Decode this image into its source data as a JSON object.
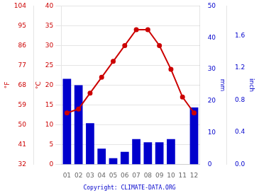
{
  "chart_data": {
    "type": "bar",
    "categories": [
      "01",
      "02",
      "03",
      "04",
      "05",
      "06",
      "07",
      "08",
      "09",
      "10",
      "11",
      "12"
    ],
    "series": [
      {
        "type": "bar",
        "color": "#0000cc",
        "axis": "y2",
        "values": [
          27,
          25,
          13,
          5,
          2,
          4,
          8,
          7,
          7,
          8,
          0,
          18
        ]
      },
      {
        "type": "line",
        "color": "#cc0000",
        "marker": "circle",
        "values": [
          13,
          14,
          18,
          22,
          26,
          30,
          34,
          34,
          30,
          24,
          17,
          13
        ]
      }
    ],
    "ylabel": "°C",
    "ylim": [
      0,
      40
    ],
    "yticks": [
      0,
      5,
      10,
      15,
      20,
      25,
      30,
      35,
      40
    ],
    "y2label": "mm",
    "y2lim": [
      0,
      50
    ],
    "y2ticks": [
      0,
      10,
      20,
      30,
      40,
      50
    ],
    "y3label": "°F",
    "y3lim": [
      32,
      104
    ],
    "y3ticks": [
      32,
      41,
      50,
      59,
      68,
      77,
      86,
      95,
      104
    ],
    "y4label": "inch",
    "y4lim": [
      0,
      1.968503937007874
    ],
    "y4ticks": [
      {
        "value": 0,
        "label": "0.0"
      },
      {
        "value": 0.4,
        "label": "0.4"
      },
      {
        "value": 0.8,
        "label": "0.8"
      },
      {
        "value": 1.2,
        "label": "1.2"
      },
      {
        "value": 1.6,
        "label": "1.6"
      }
    ],
    "annotations": [
      {
        "text": "Copyright: CLIMATE-DATA.ORG"
      }
    ],
    "grid": true
  }
}
